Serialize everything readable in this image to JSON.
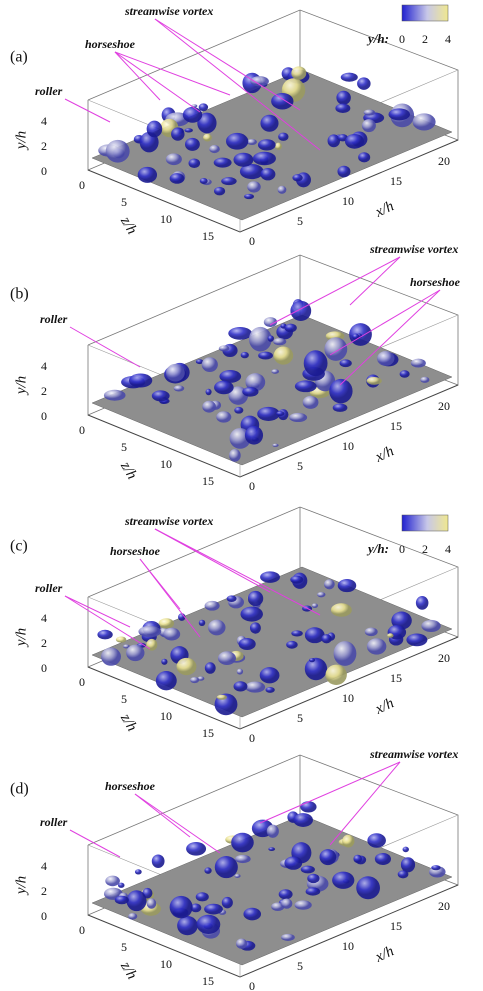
{
  "colorbar": {
    "label": "y/h:",
    "ticks": [
      0,
      2,
      4
    ]
  },
  "axes": {
    "y_label": "y/h",
    "y_ticks": [
      0,
      2,
      4
    ],
    "z_label": "z/h",
    "z_ticks": [
      0,
      5,
      10,
      15
    ],
    "x_label": "x/h",
    "x_ticks": [
      0,
      5,
      10,
      15,
      20
    ]
  },
  "panels": [
    {
      "label": "(a)",
      "annotations": [
        "streamwise vortex",
        "horseshoe",
        "roller"
      ]
    },
    {
      "label": "(b)",
      "annotations": [
        "roller",
        "streamwise vortex",
        "horseshoe"
      ]
    },
    {
      "label": "(c)",
      "annotations": [
        "streamwise vortex",
        "horseshoe",
        "roller"
      ]
    },
    {
      "label": "(d)",
      "annotations": [
        "horseshoe",
        "roller",
        "streamwise vortex"
      ]
    }
  ]
}
